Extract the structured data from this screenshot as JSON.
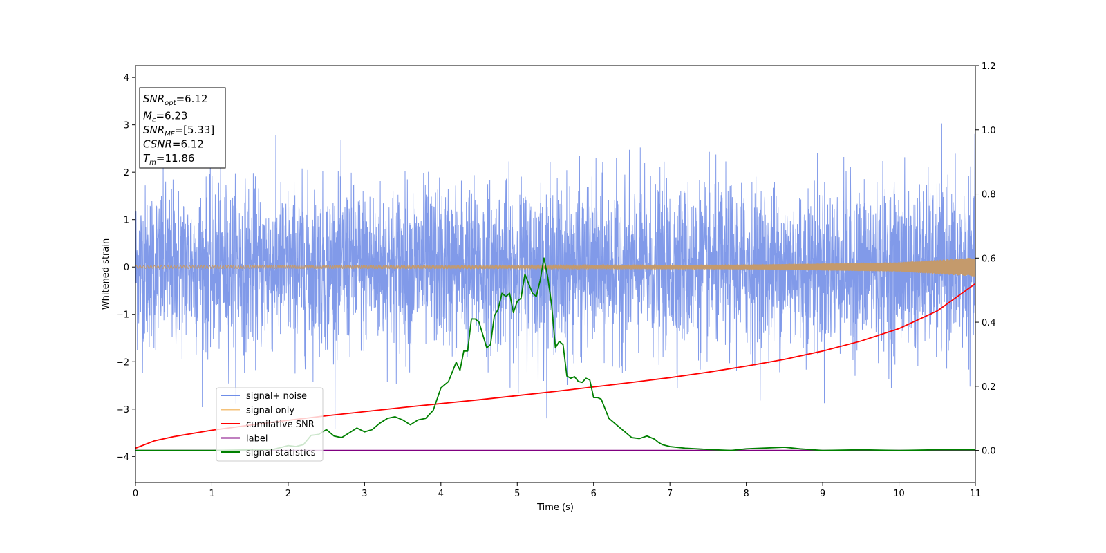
{
  "chart_data": {
    "type": "line",
    "xlabel": "Time (s)",
    "ylabel": "Whitened strain",
    "xlim": [
      0,
      11
    ],
    "ylim": [
      -4.55,
      4.25
    ],
    "y2lim": [
      -0.1,
      1.2
    ],
    "x_ticks": [
      "0",
      "1",
      "2",
      "3",
      "4",
      "5",
      "6",
      "7",
      "8",
      "9",
      "10",
      "11"
    ],
    "y_ticks": [
      "4",
      "3",
      "2",
      "1",
      "0",
      "−1",
      "−2",
      "−3",
      "−4"
    ],
    "y2_ticks": [
      "1.2",
      "1.0",
      "0.8",
      "0.6",
      "0.4",
      "0.2",
      "0.0"
    ],
    "annotation": {
      "lines": [
        {
          "name": "SNR",
          "sub": "opt",
          "value": "=6.12"
        },
        {
          "name": "M",
          "sub": "c",
          "value": "=6.23"
        },
        {
          "name": "SNR",
          "sub": "MF",
          "value": "=[5.33]"
        },
        {
          "name": "CSNR",
          "sub": "",
          "value": "=6.12"
        },
        {
          "name": "T",
          "sub": "m",
          "value": "=11.86"
        }
      ]
    },
    "legend": {
      "placement": "lower-left",
      "entries": [
        {
          "label": "signal+ noise",
          "color": "#6f8ee8"
        },
        {
          "label": "signal only",
          "color": "#f4c27a"
        },
        {
          "label": "cumilative SNR",
          "color": "#ff0000"
        },
        {
          "label": "label",
          "color": "#800080"
        },
        {
          "label": "signal statistics",
          "color": "#008000"
        }
      ]
    },
    "series": [
      {
        "name": "signal+ noise",
        "axis": "left",
        "color": "#7a95e8",
        "description_values": {
          "mean": 0,
          "std": 0.85,
          "min": -4.15,
          "max": 3.85,
          "duration_s": 11
        }
      },
      {
        "name": "signal only",
        "axis": "left",
        "color": "#c49a6c",
        "envelope": {
          "x": [
            0,
            5,
            8,
            10,
            11
          ],
          "amplitude": [
            0.03,
            0.035,
            0.05,
            0.1,
            0.2
          ]
        }
      },
      {
        "name": "cumilative SNR",
        "axis": "right",
        "color": "#ff0000",
        "x": [
          0,
          0.25,
          0.5,
          1,
          1.5,
          2,
          2.5,
          3,
          3.5,
          4,
          4.5,
          5,
          5.5,
          6,
          6.5,
          7,
          7.5,
          8,
          8.5,
          9,
          9.5,
          10,
          10.5,
          11
        ],
        "values": [
          0.007,
          0.03,
          0.043,
          0.063,
          0.079,
          0.094,
          0.108,
          0.121,
          0.134,
          0.146,
          0.158,
          0.171,
          0.184,
          0.198,
          0.212,
          0.227,
          0.244,
          0.263,
          0.284,
          0.31,
          0.341,
          0.38,
          0.435,
          0.52
        ]
      },
      {
        "name": "label",
        "axis": "right",
        "color": "#800080",
        "x": [
          0,
          11
        ],
        "values": [
          0,
          0
        ]
      },
      {
        "name": "signal statistics",
        "axis": "right",
        "color": "#008000",
        "x": [
          0,
          1,
          1.8,
          2.0,
          2.1,
          2.2,
          2.3,
          2.4,
          2.5,
          2.6,
          2.7,
          2.8,
          2.9,
          3.0,
          3.1,
          3.2,
          3.3,
          3.4,
          3.5,
          3.6,
          3.7,
          3.8,
          3.9,
          4.0,
          4.1,
          4.2,
          4.25,
          4.3,
          4.35,
          4.4,
          4.45,
          4.5,
          4.6,
          4.65,
          4.7,
          4.75,
          4.8,
          4.85,
          4.9,
          4.95,
          5.0,
          5.05,
          5.1,
          5.2,
          5.25,
          5.3,
          5.35,
          5.4,
          5.45,
          5.5,
          5.55,
          5.6,
          5.65,
          5.7,
          5.75,
          5.8,
          5.85,
          5.9,
          5.95,
          6.0,
          6.05,
          6.1,
          6.15,
          6.2,
          6.3,
          6.4,
          6.5,
          6.6,
          6.7,
          6.8,
          6.85,
          6.9,
          7.0,
          7.2,
          7.5,
          7.8,
          8.0,
          8.5,
          8.7,
          9.0,
          9.5,
          10.0,
          10.5,
          11.0
        ],
        "values": [
          0.0,
          0.0,
          0.003,
          0.015,
          0.012,
          0.018,
          0.047,
          0.05,
          0.065,
          0.045,
          0.04,
          0.055,
          0.07,
          0.058,
          0.065,
          0.085,
          0.1,
          0.105,
          0.095,
          0.08,
          0.095,
          0.1,
          0.125,
          0.195,
          0.215,
          0.275,
          0.25,
          0.31,
          0.31,
          0.41,
          0.41,
          0.4,
          0.32,
          0.33,
          0.42,
          0.44,
          0.49,
          0.48,
          0.49,
          0.43,
          0.465,
          0.475,
          0.55,
          0.49,
          0.48,
          0.53,
          0.6,
          0.54,
          0.455,
          0.32,
          0.34,
          0.33,
          0.232,
          0.225,
          0.23,
          0.215,
          0.212,
          0.225,
          0.22,
          0.165,
          0.165,
          0.16,
          0.13,
          0.1,
          0.08,
          0.06,
          0.04,
          0.037,
          0.045,
          0.035,
          0.025,
          0.018,
          0.012,
          0.007,
          0.003,
          0.0,
          0.005,
          0.01,
          0.005,
          0.0,
          0.002,
          0.0,
          0.002,
          0.002
        ]
      }
    ]
  }
}
